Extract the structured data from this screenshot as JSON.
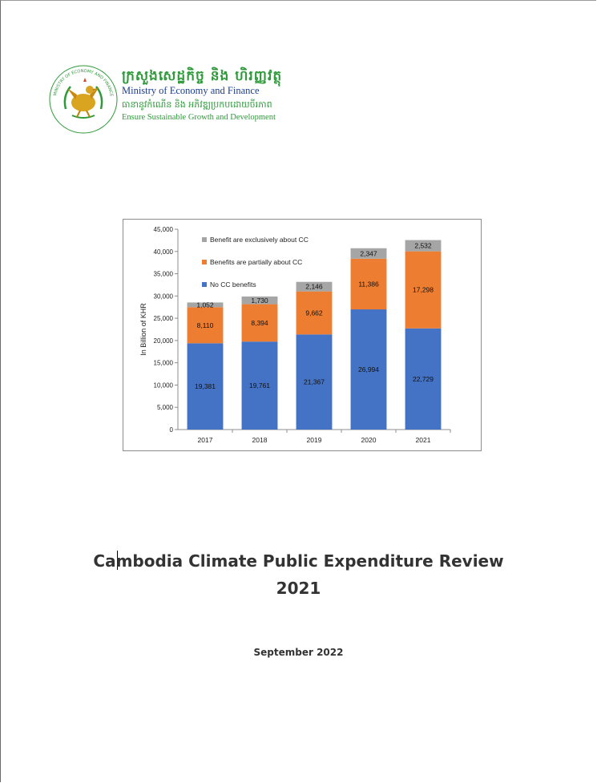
{
  "logo": {
    "khmer_title": "ក្រសួងសេដ្ឋកិច្ច និង ហិរញ្ញវត្ថុ",
    "ministry": "Ministry of Economy and Finance",
    "khmer_tagline": "ធានានូវកំណើន និង អភិវឌ្ឍប្រកបដោយចីរភាព",
    "tagline": "Ensure Sustainable Growth and Development",
    "ring_text_left": "ក្រសួងសេដ្ឋកិច្ច និង ហិរញ្ញវត្ថុ",
    "ring_text_bottom": "MINISTRY OF ECONOMY AND FINANCE"
  },
  "colors": {
    "no_cc": "#4472C4",
    "partial_cc": "#ED7D31",
    "exclusive_cc": "#A5A5A5",
    "logo_green": "#2e9a3a",
    "logo_blue": "#1a3d8f"
  },
  "chart_data": {
    "type": "bar",
    "stacked": true,
    "categories": [
      "2017",
      "2018",
      "2019",
      "2020",
      "2021"
    ],
    "series": [
      {
        "name": "No CC benefits",
        "values": [
          19381,
          19761,
          21367,
          26994,
          22729
        ],
        "labels": [
          "19,381",
          "19,761",
          "21,367",
          "26,994",
          "22,729"
        ],
        "color": "#4472C4"
      },
      {
        "name": "Benefits are partially about CC",
        "values": [
          8110,
          8394,
          9662,
          11386,
          17298
        ],
        "labels": [
          "8,110",
          "8,394",
          "9,662",
          "11,386",
          "17,298"
        ],
        "color": "#ED7D31"
      },
      {
        "name": "Benefit are exclusively about CC",
        "values": [
          1052,
          1730,
          2146,
          2347,
          2532
        ],
        "labels": [
          "1,052",
          "1,730",
          "2,146",
          "2,347",
          "2,532"
        ],
        "color": "#A5A5A5"
      }
    ],
    "legend_order": [
      2,
      1,
      0
    ],
    "legend_position": "top-left",
    "ylabel": "In Billion of KHR",
    "xlabel": "",
    "ylim": [
      0,
      45000
    ],
    "ytick_values": [
      0,
      5000,
      10000,
      15000,
      20000,
      25000,
      30000,
      35000,
      40000,
      45000
    ],
    "ytick_labels": [
      "0",
      "5,000",
      "10,000",
      "15,000",
      "20,000",
      "25,000",
      "30,000",
      "35,000",
      "40,000",
      "45,000"
    ],
    "grid": false
  },
  "report": {
    "title_line1": "Cambodia Climate Public Expenditure Review",
    "title_line2": "2021",
    "date": "September 2022"
  }
}
